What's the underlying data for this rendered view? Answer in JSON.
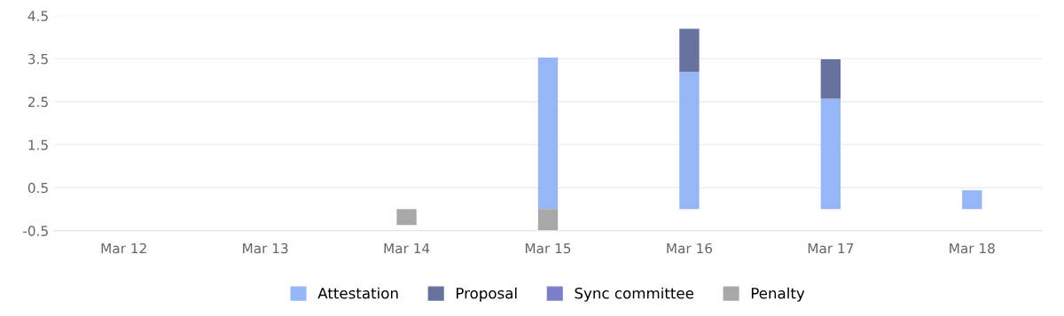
{
  "chart_data": {
    "type": "bar",
    "stacked": true,
    "categories": [
      "Mar 12",
      "Mar 13",
      "Mar 14",
      "Mar 15",
      "Mar 16",
      "Mar 17",
      "Mar 18"
    ],
    "series": [
      {
        "name": "Attestation",
        "color": "#97b6f6",
        "values": [
          null,
          null,
          null,
          3.53,
          3.2,
          2.57,
          0.44
        ]
      },
      {
        "name": "Proposal",
        "color": "#67729e",
        "values": [
          null,
          null,
          null,
          null,
          1.0,
          0.92,
          null
        ]
      },
      {
        "name": "Sync committee",
        "color": "#7b7fc9",
        "values": [
          null,
          null,
          null,
          null,
          null,
          null,
          null
        ]
      },
      {
        "name": "Penalty",
        "color": "#a8a8a8",
        "values": [
          null,
          null,
          -0.37,
          -0.5,
          null,
          null,
          null
        ]
      }
    ],
    "ylim": [
      -0.5,
      4.5
    ],
    "yticks": [
      {
        "value": -0.5,
        "label": "-0.5"
      },
      0.5,
      1.5,
      2.5,
      3.5,
      4.5
    ],
    "grid": "y",
    "legend": "bottom"
  }
}
